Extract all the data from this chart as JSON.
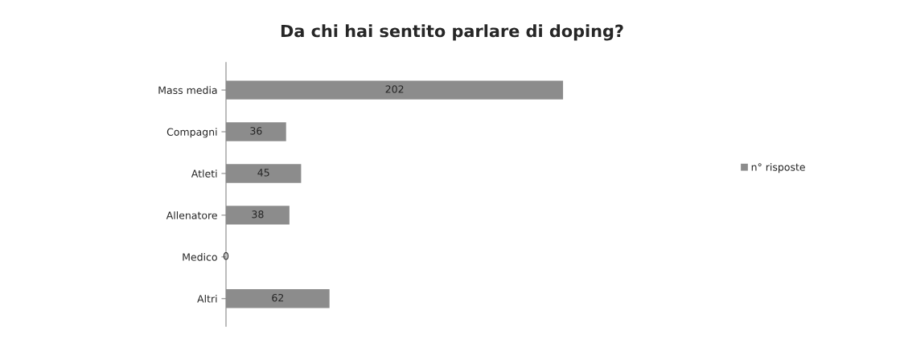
{
  "chart_data": {
    "type": "bar",
    "orientation": "horizontal",
    "title": "Da chi hai sentito parlare di doping?",
    "categories": [
      "Mass media",
      "Compagni",
      "Atleti",
      "Allenatore",
      "Medico",
      "Altri"
    ],
    "series": [
      {
        "name": "n° risposte",
        "color": "#8c8c8c",
        "values": [
          202,
          36,
          45,
          38,
          0,
          62
        ]
      }
    ],
    "data_labels": true,
    "legend": "right",
    "grid": false
  }
}
